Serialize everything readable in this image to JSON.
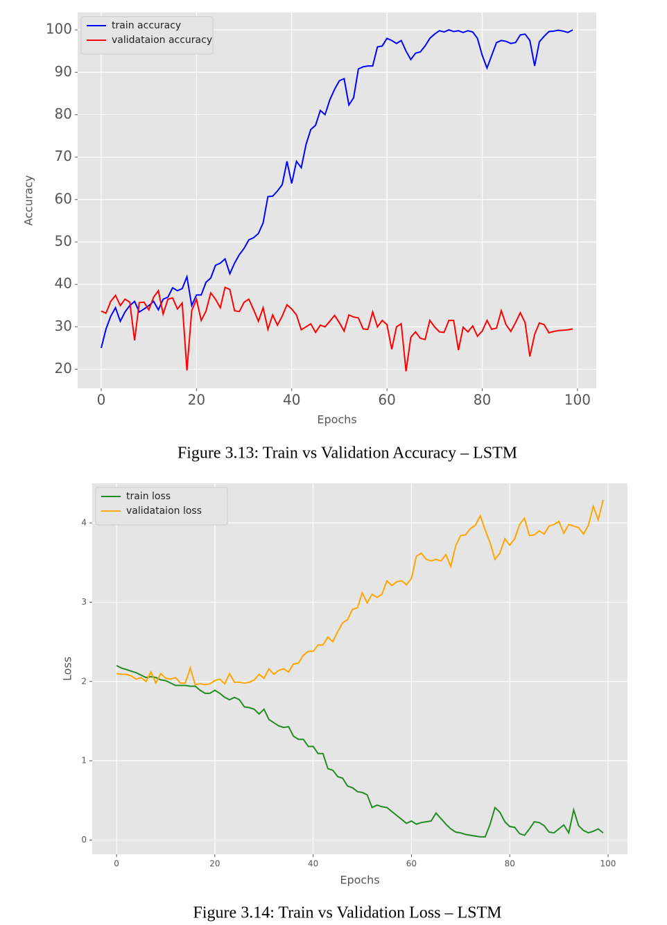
{
  "chart_data": [
    {
      "type": "line",
      "caption": "Figure 3.13: Train vs Validation Accuracy – LSTM",
      "xlabel": "Epochs",
      "ylabel": "Accuracy",
      "x": [
        0,
        1,
        2,
        3,
        4,
        5,
        6,
        7,
        8,
        9,
        10,
        11,
        12,
        13,
        14,
        15,
        16,
        17,
        18,
        19,
        20,
        21,
        22,
        23,
        24,
        25,
        26,
        27,
        28,
        29,
        30,
        31,
        32,
        33,
        34,
        35,
        36,
        37,
        38,
        39,
        40,
        41,
        42,
        43,
        44,
        45,
        46,
        47,
        48,
        49,
        50,
        51,
        52,
        53,
        54,
        55,
        56,
        57,
        58,
        59,
        60,
        61,
        62,
        63,
        64,
        65,
        66,
        67,
        68,
        69,
        70,
        71,
        72,
        73,
        74,
        75,
        76,
        77,
        78,
        79,
        80,
        81,
        82,
        83,
        84,
        85,
        86,
        87,
        88,
        89,
        90,
        91,
        92,
        93,
        94,
        95,
        96,
        97,
        98,
        99
      ],
      "series": [
        {
          "name": "train accuracy",
          "color": "#0000ff",
          "values": [
            25,
            29.5,
            32.5,
            34.5,
            31.3,
            33.5,
            35,
            36,
            33.5,
            34.2,
            35,
            36,
            34,
            36.5,
            37,
            39.2,
            38.5,
            39,
            41.8,
            35,
            37.5,
            37.5,
            40.5,
            41.5,
            44.5,
            45,
            46,
            42.5,
            45,
            47,
            48.5,
            50.5,
            51,
            52,
            54.5,
            60.7,
            60.8,
            62,
            63.5,
            69,
            63.8,
            69,
            67.5,
            73,
            76.5,
            77.5,
            81,
            80,
            83.5,
            86,
            88,
            88.5,
            82.3,
            84,
            90.8,
            91.3,
            91.5,
            91.5,
            96,
            96.2,
            98,
            97.5,
            96.8,
            97.5,
            95,
            93,
            94.5,
            94.8,
            96.2,
            98,
            99,
            99.8,
            99.5,
            100,
            99.6,
            99.8,
            99.4,
            99.8,
            99.5,
            98,
            94,
            91,
            94,
            97,
            97.5,
            97.3,
            96.8,
            97,
            98.8,
            99,
            97.5,
            91.5,
            97.2,
            98.5,
            99.6,
            99.7,
            99.9,
            99.7,
            99.4,
            100
          ]
        },
        {
          "name": "validataion accuracy",
          "color": "#ff0000",
          "values": [
            33.7,
            33.2,
            36,
            37.4,
            35,
            36.5,
            35.8,
            26.8,
            35.7,
            35.8,
            34,
            37,
            38.5,
            33,
            36.5,
            36.8,
            34.2,
            35.6,
            19.7,
            33.8,
            36.5,
            31.5,
            33.7,
            38,
            36.5,
            34.5,
            39.3,
            38.8,
            33.8,
            33.6,
            35.8,
            36.5,
            34,
            31.3,
            34.5,
            29.4,
            32.8,
            30.4,
            32.5,
            35.2,
            34.2,
            32.8,
            29.3,
            30,
            30.7,
            28.7,
            30.4,
            30,
            31.3,
            32.7,
            31,
            29,
            32.8,
            32.3,
            32.1,
            29.5,
            29.4,
            33.5,
            30,
            31.5,
            30.5,
            24.7,
            30,
            30.7,
            19.5,
            27.5,
            28.8,
            27.3,
            27,
            31.5,
            30,
            28.8,
            28.7,
            31.5,
            31.5,
            24.5,
            29.9,
            28.8,
            30.2,
            27.8,
            29,
            31.5,
            29.4,
            29.7,
            33.8,
            30.5,
            28.9,
            31,
            33.3,
            31,
            23,
            28.2,
            30.9,
            30.5,
            28.6,
            28.9,
            29.1,
            29.2,
            29.3,
            29.5
          ]
        }
      ],
      "xlim": [
        -4.95,
        103.95
      ],
      "ylim": [
        15.5,
        104.1
      ],
      "xticks": [
        0,
        20,
        40,
        60,
        80,
        100
      ],
      "yticks": [
        20,
        30,
        40,
        50,
        60,
        70,
        80,
        90,
        100
      ],
      "grid": true,
      "legend": "upper left"
    },
    {
      "type": "line",
      "caption": "Figure 3.14: Train vs Validation Loss – LSTM",
      "xlabel": "Epochs",
      "ylabel": "Loss",
      "x": [
        0,
        1,
        2,
        3,
        4,
        5,
        6,
        7,
        8,
        9,
        10,
        11,
        12,
        13,
        14,
        15,
        16,
        17,
        18,
        19,
        20,
        21,
        22,
        23,
        24,
        25,
        26,
        27,
        28,
        29,
        30,
        31,
        32,
        33,
        34,
        35,
        36,
        37,
        38,
        39,
        40,
        41,
        42,
        43,
        44,
        45,
        46,
        47,
        48,
        49,
        50,
        51,
        52,
        53,
        54,
        55,
        56,
        57,
        58,
        59,
        60,
        61,
        62,
        63,
        64,
        65,
        66,
        67,
        68,
        69,
        70,
        71,
        72,
        73,
        74,
        75,
        76,
        77,
        78,
        79,
        80,
        81,
        82,
        83,
        84,
        85,
        86,
        87,
        88,
        89,
        90,
        91,
        92,
        93,
        94,
        95,
        96,
        97,
        98,
        99
      ],
      "series": [
        {
          "name": "train loss",
          "color": "#228b22",
          "values": [
            2.2,
            2.17,
            2.15,
            2.13,
            2.11,
            2.08,
            2.05,
            2.06,
            2.05,
            2.02,
            2.01,
            1.98,
            1.95,
            1.95,
            1.95,
            1.94,
            1.94,
            1.89,
            1.85,
            1.85,
            1.89,
            1.85,
            1.8,
            1.77,
            1.8,
            1.77,
            1.68,
            1.67,
            1.65,
            1.59,
            1.65,
            1.52,
            1.48,
            1.44,
            1.42,
            1.43,
            1.31,
            1.27,
            1.27,
            1.18,
            1.18,
            1.09,
            1.09,
            0.9,
            0.88,
            0.8,
            0.78,
            0.68,
            0.66,
            0.61,
            0.6,
            0.57,
            0.41,
            0.44,
            0.42,
            0.41,
            0.36,
            0.31,
            0.26,
            0.21,
            0.24,
            0.2,
            0.22,
            0.23,
            0.24,
            0.34,
            0.27,
            0.2,
            0.14,
            0.1,
            0.09,
            0.07,
            0.06,
            0.05,
            0.04,
            0.04,
            0.2,
            0.41,
            0.35,
            0.23,
            0.17,
            0.16,
            0.08,
            0.06,
            0.14,
            0.23,
            0.22,
            0.18,
            0.1,
            0.09,
            0.14,
            0.19,
            0.09,
            0.38,
            0.18,
            0.12,
            0.09,
            0.11,
            0.14,
            0.09
          ]
        },
        {
          "name": "validataion loss",
          "color": "#ffa500",
          "values": [
            2.1,
            2.09,
            2.09,
            2.07,
            2.03,
            2.05,
            2.0,
            2.12,
            1.98,
            2.1,
            2.04,
            2.03,
            2.05,
            1.98,
            1.98,
            2.17,
            1.96,
            1.97,
            1.96,
            1.97,
            2.01,
            2.03,
            1.97,
            2.1,
            1.99,
            1.99,
            1.98,
            1.99,
            2.02,
            2.09,
            2.04,
            2.16,
            2.09,
            2.14,
            2.16,
            2.12,
            2.22,
            2.23,
            2.33,
            2.38,
            2.38,
            2.46,
            2.46,
            2.56,
            2.5,
            2.63,
            2.74,
            2.78,
            2.91,
            2.93,
            3.12,
            2.99,
            3.1,
            3.06,
            3.1,
            3.27,
            3.21,
            3.26,
            3.27,
            3.22,
            3.3,
            3.58,
            3.62,
            3.54,
            3.52,
            3.54,
            3.52,
            3.6,
            3.45,
            3.71,
            3.84,
            3.85,
            3.93,
            3.97,
            4.09,
            3.91,
            3.75,
            3.54,
            3.62,
            3.8,
            3.72,
            3.8,
            3.98,
            4.06,
            3.84,
            3.85,
            3.9,
            3.86,
            3.96,
            3.98,
            4.02,
            3.87,
            3.98,
            3.96,
            3.94,
            3.86,
            3.97,
            4.21,
            4.04,
            4.29
          ]
        }
      ],
      "xlim": [
        -4.95,
        103.95
      ],
      "ylim": [
        -0.18,
        4.5
      ],
      "xticks": [
        0,
        20,
        40,
        60,
        80,
        100
      ],
      "yticks": [
        0,
        1,
        2,
        3,
        4
      ],
      "grid": true,
      "legend": "upper left"
    }
  ]
}
